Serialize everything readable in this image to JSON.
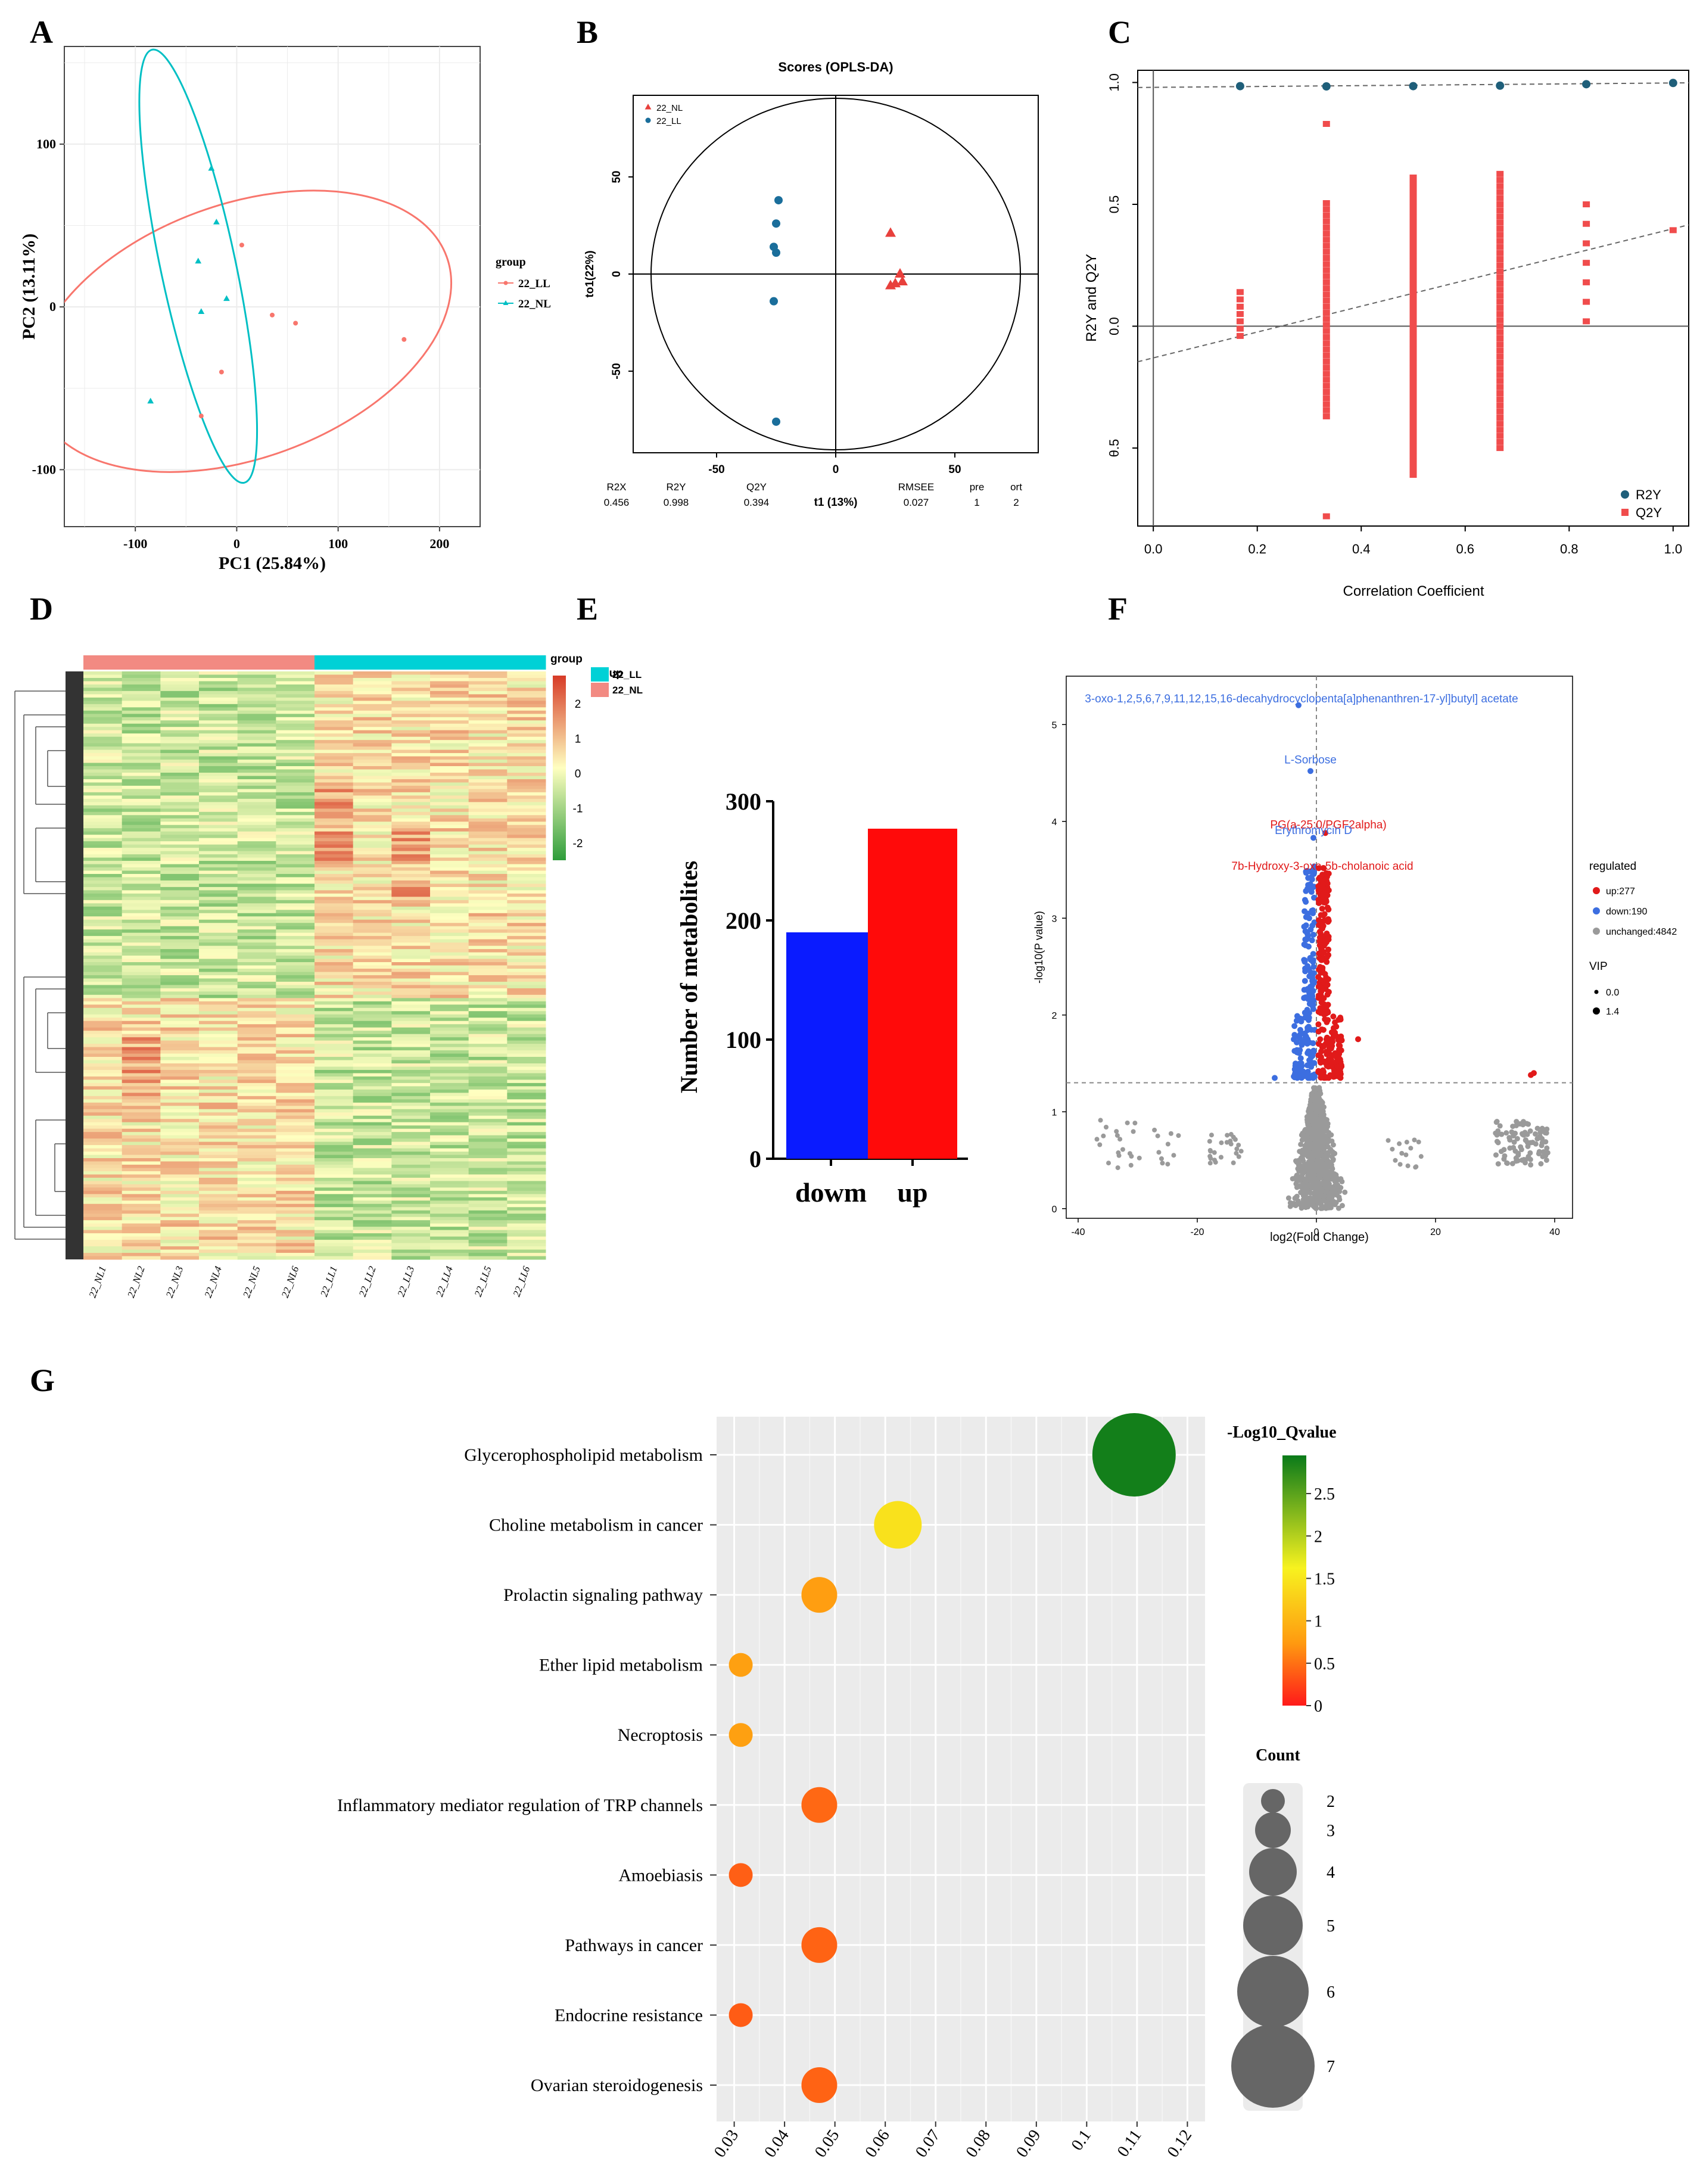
{
  "chart_data": [
    {
      "panel": "A",
      "type": "scatter",
      "panel_label": "A",
      "xlabel": "PC1 (25.84%)",
      "ylabel": "PC2 (13.11%)",
      "xlim": [
        -170,
        240
      ],
      "ylim": [
        -135,
        160
      ],
      "xticks": [
        -100,
        0,
        100,
        200
      ],
      "yticks": [
        -100,
        0,
        100
      ],
      "legend_title": "group",
      "series": [
        {
          "name": "22_LL",
          "color": "#f8766d",
          "marker": "dot",
          "points": [
            [
              5,
              38
            ],
            [
              35,
              -5
            ],
            [
              58,
              -10
            ],
            [
              165,
              -20
            ],
            [
              -15,
              -40
            ],
            [
              -35,
              -67
            ]
          ]
        },
        {
          "name": "22_NL",
          "color": "#00bfc4",
          "marker": "triangle",
          "points": [
            [
              -25,
              85
            ],
            [
              -20,
              52
            ],
            [
              -38,
              28
            ],
            [
              -10,
              5
            ],
            [
              -35,
              -3
            ],
            [
              -85,
              -58
            ]
          ]
        }
      ],
      "ellipses": [
        {
          "series": "22_LL",
          "cx": 5,
          "cy": -15,
          "rx": 215,
          "ry": 78,
          "angle": 20
        },
        {
          "series": "22_NL",
          "cx": -38,
          "cy": 25,
          "rx": 37,
          "ry": 136,
          "angle": 12
        }
      ]
    },
    {
      "panel": "B",
      "type": "scatter",
      "panel_label": "B",
      "title": "Scores (OPLS-DA)",
      "xlabel": "t1 (13%)",
      "ylabel": "to1(22%)",
      "xlim": [
        -85,
        85
      ],
      "ylim": [
        -92,
        92
      ],
      "xticks": [
        -50,
        0,
        50
      ],
      "yticks": [
        -50,
        0,
        50
      ],
      "series": [
        {
          "name": "22_NL",
          "color": "#e8403c",
          "marker": "triangle",
          "points": [
            [
              23,
              21
            ],
            [
              27,
              0
            ],
            [
              25,
              -5
            ],
            [
              23,
              -6
            ],
            [
              28,
              -4
            ]
          ]
        },
        {
          "name": "22_LL",
          "color": "#1a6e9b",
          "marker": "dot",
          "points": [
            [
              -24,
              38
            ],
            [
              -25,
              26
            ],
            [
              -26,
              14
            ],
            [
              -25,
              11
            ],
            [
              -26,
              -14
            ],
            [
              -25,
              -76
            ]
          ]
        }
      ],
      "stats": [
        {
          "label": "R2X",
          "value": "0.456"
        },
        {
          "label": "R2Y",
          "value": "0.998"
        },
        {
          "label": "Q2Y",
          "value": "0.394"
        },
        {
          "label": "RMSEE",
          "value": "0.027"
        },
        {
          "label": "pre",
          "value": "1"
        },
        {
          "label": "ort",
          "value": "2"
        }
      ]
    },
    {
      "panel": "C",
      "type": "scatter",
      "panel_label": "C",
      "xlabel": "Correlation Coefficient",
      "ylabel": "R2Y and Q2Y",
      "xlim": [
        -0.03,
        1.03
      ],
      "ylim": [
        -0.82,
        1.05
      ],
      "xticks": [
        0.0,
        0.2,
        0.4,
        0.6,
        0.8,
        1.0
      ],
      "xtick_labels": [
        "0.0",
        "0.2",
        "0.4",
        "0.6",
        "0.8",
        "1.0"
      ],
      "yticks": [
        -0.5,
        0.0,
        0.5,
        1.0
      ],
      "ytick_labels": [
        "θ.5",
        "0.0",
        "0.5",
        "1.0"
      ],
      "series": [
        {
          "name": "R2Y",
          "color": "#1f5f7a",
          "marker": "dot",
          "points": [
            [
              0.167,
              0.985
            ],
            [
              0.333,
              0.984
            ],
            [
              0.5,
              0.985
            ],
            [
              0.667,
              0.987
            ],
            [
              0.833,
              0.993
            ],
            [
              1.0,
              0.998
            ]
          ]
        },
        {
          "name": "Q2Y",
          "color": "#f04c4c",
          "marker": "square",
          "columns": [
            {
              "x": 0.167,
              "from": -0.04,
              "to": 0.14,
              "step": 0.03
            },
            {
              "x": 0.333,
              "from": -0.37,
              "to": 0.51,
              "step": 0.025
            },
            {
              "x": 0.5,
              "from": -0.61,
              "to": 0.61,
              "step": 0.02
            },
            {
              "x": 0.667,
              "from": -0.5,
              "to": 0.64,
              "step": 0.025
            },
            {
              "x": 0.833,
              "from": 0.02,
              "to": 0.54,
              "step": 0.08
            }
          ],
          "points": [
            [
              0.333,
              -0.78
            ],
            [
              0.333,
              0.83
            ],
            [
              1.0,
              0.394
            ]
          ]
        }
      ],
      "regression_lines": [
        {
          "series": "R2Y",
          "intercept": 0.98,
          "slope": 0.018
        },
        {
          "series": "Q2Y",
          "intercept": -0.13,
          "slope": 0.53
        }
      ]
    },
    {
      "panel": "D",
      "type": "heatmap",
      "panel_label": "D",
      "columns": [
        "22_NL1",
        "22_NL2",
        "22_NL3",
        "22_NL4",
        "22_NL5",
        "22_NL6",
        "22_LL1",
        "22_LL2",
        "22_LL3",
        "22_LL4",
        "22_LL5",
        "22_LL6"
      ],
      "column_groups": [
        "22_NL",
        "22_NL",
        "22_NL",
        "22_NL",
        "22_NL",
        "22_NL",
        "22_LL",
        "22_LL",
        "22_LL",
        "22_LL",
        "22_LL",
        "22_LL"
      ],
      "n_rows": 180,
      "legend_title": "group",
      "group_legend": [
        {
          "name": "22_LL",
          "color": "#00d1d6"
        },
        {
          "name": "22_NL",
          "color": "#f28a82"
        }
      ],
      "color_scale": {
        "min": -2.5,
        "max": 2.8,
        "ticks": [
          2,
          1,
          0,
          -1,
          -2
        ],
        "colors": [
          "#2e9d3b",
          "#ffffc0",
          "#d73b27"
        ]
      }
    },
    {
      "panel": "E",
      "type": "bar",
      "panel_label": "E",
      "categories": [
        "dowm",
        "up"
      ],
      "values": [
        190,
        277
      ],
      "colors": [
        "#0a1bff",
        "#ff0a0a"
      ],
      "ylabel": "Number of metabolites",
      "ylim": [
        0,
        300
      ],
      "yticks": [
        0,
        100,
        200,
        300
      ]
    },
    {
      "panel": "F",
      "type": "scatter",
      "panel_label": "F",
      "xlabel": "log2(Fold Change)",
      "ylabel": "-log10(P value)",
      "xlim": [
        -42,
        43
      ],
      "ylim": [
        -0.1,
        5.5
      ],
      "xticks": [
        -40,
        -20,
        0,
        20,
        40
      ],
      "yticks": [
        0,
        1,
        2,
        3,
        4,
        5
      ],
      "threshold_y": 1.3,
      "legend_title": "regulated",
      "legend": [
        {
          "label": "up:277",
          "color": "#e11a1a"
        },
        {
          "label": "down:190",
          "color": "#3c6ee0"
        },
        {
          "label": "unchanged:4842",
          "color": "#9a9a9a"
        }
      ],
      "size_legend_title": "VIP",
      "size_legend": [
        "0.0",
        "1.4"
      ],
      "annotations": [
        {
          "text": "3-oxo-1,2,5,6,7,9,11,12,15,16-decahydrocyclopenta[a]phenanthren-17-yl]butyl] acetate",
          "x": -2.5,
          "y": 5.18,
          "color": "#3c6ee0"
        },
        {
          "text": "L-Sorbose",
          "x": -1,
          "y": 4.55,
          "color": "#3c6ee0"
        },
        {
          "text": "PG(a-25:0/PGF2alpha)",
          "x": 2,
          "y": 3.88,
          "color": "#e11a1a"
        },
        {
          "text": "Erythromycin D",
          "x": -0.5,
          "y": 3.82,
          "color": "#3c6ee0"
        },
        {
          "text": "7b-Hydroxy-3-oxo-5b-cholanoic acid",
          "x": 1,
          "y": 3.45,
          "color": "#e11a1a"
        }
      ],
      "counts": {
        "up": 277,
        "down": 190,
        "unchanged": 4842
      }
    },
    {
      "panel": "G",
      "type": "scatter",
      "subtype": "bubble",
      "panel_label": "G",
      "xlim": [
        0.0265,
        0.1235
      ],
      "xticks": [
        0.03,
        0.04,
        0.05,
        0.06,
        0.07,
        0.08,
        0.09,
        0.1,
        0.11,
        0.12
      ],
      "xtick_labels": [
        "0.03",
        "0.04",
        "0.05",
        "0.06",
        "0.07",
        "0.08",
        "0.09",
        "0.1",
        "0.11",
        "0.12"
      ],
      "categories": [
        "Glycerophospholipid metabolism",
        "Choline metabolism in cancer",
        "Prolactin signaling pathway",
        "Ether lipid metabolism",
        "Necroptosis",
        "Inflammatory mediator regulation of TRP channels",
        "Amoebiasis",
        "Pathways in cancer",
        "Endocrine resistance",
        "Ovarian steroidogenesis"
      ],
      "x": [
        0.1094,
        0.0625,
        0.0469,
        0.0313,
        0.0313,
        0.0469,
        0.0313,
        0.0469,
        0.0313,
        0.0469
      ],
      "count": [
        7,
        4,
        3,
        2,
        2,
        3,
        2,
        3,
        2,
        3
      ],
      "qvalue": [
        2.9,
        1.45,
        0.78,
        0.8,
        0.8,
        0.45,
        0.4,
        0.42,
        0.38,
        0.42
      ],
      "color_legend_title": "-Log10_Qvalue",
      "color_ticks": [
        0,
        0.5,
        1,
        1.5,
        2,
        2.5
      ],
      "color_tick_labels": [
        "0",
        "0.5",
        "1",
        "1.5",
        "2",
        "2.5"
      ],
      "color_range": [
        0,
        2.95
      ],
      "size_legend_title": "Count",
      "size_legend": [
        2,
        3,
        4,
        5,
        6,
        7
      ]
    }
  ]
}
